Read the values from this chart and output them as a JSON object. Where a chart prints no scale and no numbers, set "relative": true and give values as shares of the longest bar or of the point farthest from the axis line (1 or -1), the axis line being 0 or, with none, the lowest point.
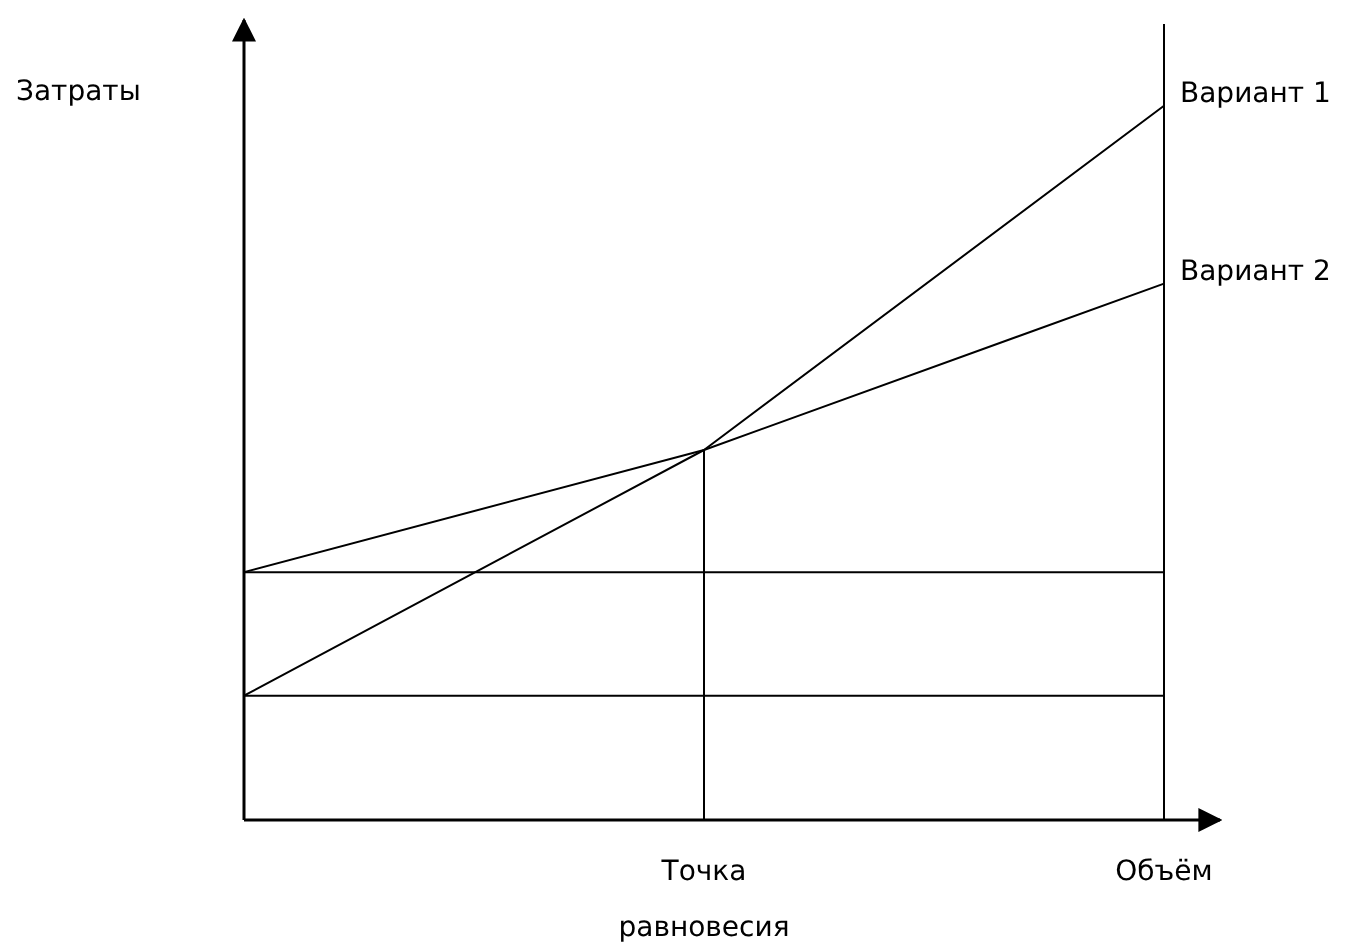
{
  "chart_data": {
    "type": "line",
    "relative": true,
    "ylabel": "Затраты",
    "categories": [
      null,
      "Точка равновесия",
      "Объём"
    ],
    "series": [
      {
        "name": "Вариант 1",
        "color": "#000000",
        "values": [
          0.174,
          0.518,
          1.0
        ]
      },
      {
        "name": "Вариант 2",
        "color": "#000000",
        "values": [
          0.347,
          0.518,
          0.751
        ]
      }
    ],
    "ref_lines": [
      {
        "axis": "y",
        "value": 0.174,
        "label": null
      },
      {
        "axis": "y",
        "value": 0.347,
        "label": null
      },
      {
        "axis": "x",
        "value": "Точка равновесия",
        "label": null
      },
      {
        "axis": "x",
        "value": "Объём",
        "label": null
      }
    ],
    "legend": false,
    "marker": "none",
    "line_style": "solid"
  }
}
